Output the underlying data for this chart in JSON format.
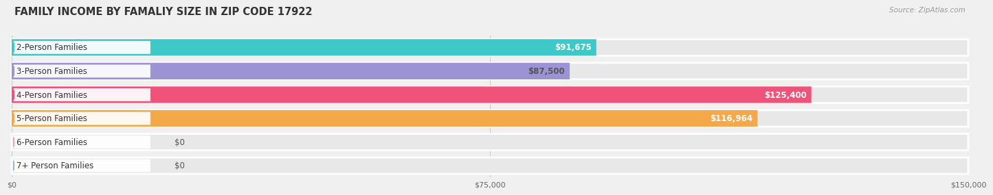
{
  "title": "FAMILY INCOME BY FAMALIY SIZE IN ZIP CODE 17922",
  "source": "Source: ZipAtlas.com",
  "categories": [
    "2-Person Families",
    "3-Person Families",
    "4-Person Families",
    "5-Person Families",
    "6-Person Families",
    "7+ Person Families"
  ],
  "values": [
    91675,
    87500,
    125400,
    116964,
    0,
    0
  ],
  "bar_colors": [
    "#3ec8c8",
    "#9b93d4",
    "#f0527a",
    "#f5a84a",
    "#f4a0a0",
    "#90bce8"
  ],
  "bg_color": "#e8e8e8",
  "bg_bar_color": "#f0f0f0",
  "label_bg_colors": [
    "#e8f8f8",
    "#eeedf8",
    "#fde8ee",
    "#fef3e5",
    "#fdf0f0",
    "#eaf2fb"
  ],
  "value_label_colors": [
    "#ffffff",
    "#555555",
    "#ffffff",
    "#ffffff",
    "#555555",
    "#555555"
  ],
  "xlim": [
    0,
    150000
  ],
  "xticks": [
    0,
    75000,
    150000
  ],
  "xticklabels": [
    "$0",
    "$75,000",
    "$150,000"
  ],
  "value_labels": [
    "$91,675",
    "$87,500",
    "$125,400",
    "$116,964",
    "$0",
    "$0"
  ],
  "background_color": "#f0f0f0",
  "figure_bg": "#f0f0f0",
  "bar_height": 0.7,
  "title_fontsize": 10.5,
  "label_fontsize": 8.5,
  "tick_fontsize": 8
}
